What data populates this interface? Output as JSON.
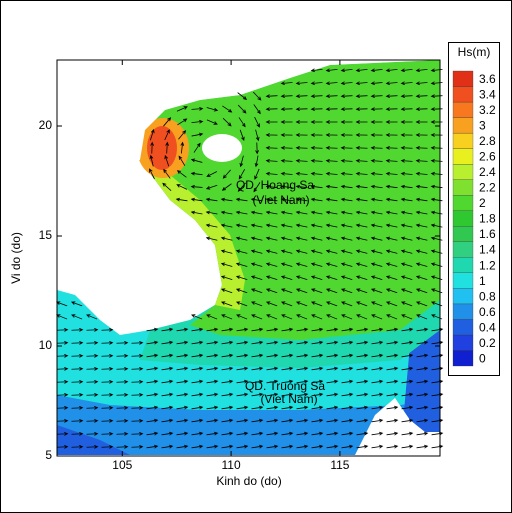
{
  "chart_data": {
    "type": "contour-map",
    "xlabel": "Kinh do (do)",
    "ylabel": "Vi do (do)",
    "xlim": [
      102,
      119.6
    ],
    "ylim": [
      5,
      23
    ],
    "xticks": [
      105,
      110,
      115
    ],
    "yticks": [
      5,
      10,
      15,
      20
    ],
    "annotations": [
      "QD. Hoang Sa",
      "(Viet Nam)",
      "QD. Truong Sa",
      "(Viet Nam)"
    ],
    "colorbar": {
      "title": "Hs(m)",
      "levels": [
        0,
        0.2,
        0.4,
        0.6,
        0.8,
        1,
        1.2,
        1.4,
        1.6,
        1.8,
        2,
        2.2,
        2.4,
        2.6,
        2.8,
        3,
        3.2,
        3.4,
        3.6
      ],
      "colors": [
        "#1020d0",
        "#2040e0",
        "#2060e0",
        "#2090e8",
        "#20c0f0",
        "#20e0e0",
        "#20d8b0",
        "#30d080",
        "#30c850",
        "#30c830",
        "#50d830",
        "#80e030",
        "#b8f030",
        "#e8f020",
        "#f8d020",
        "#f8a020",
        "#f87820",
        "#f05020",
        "#e03018"
      ]
    }
  }
}
